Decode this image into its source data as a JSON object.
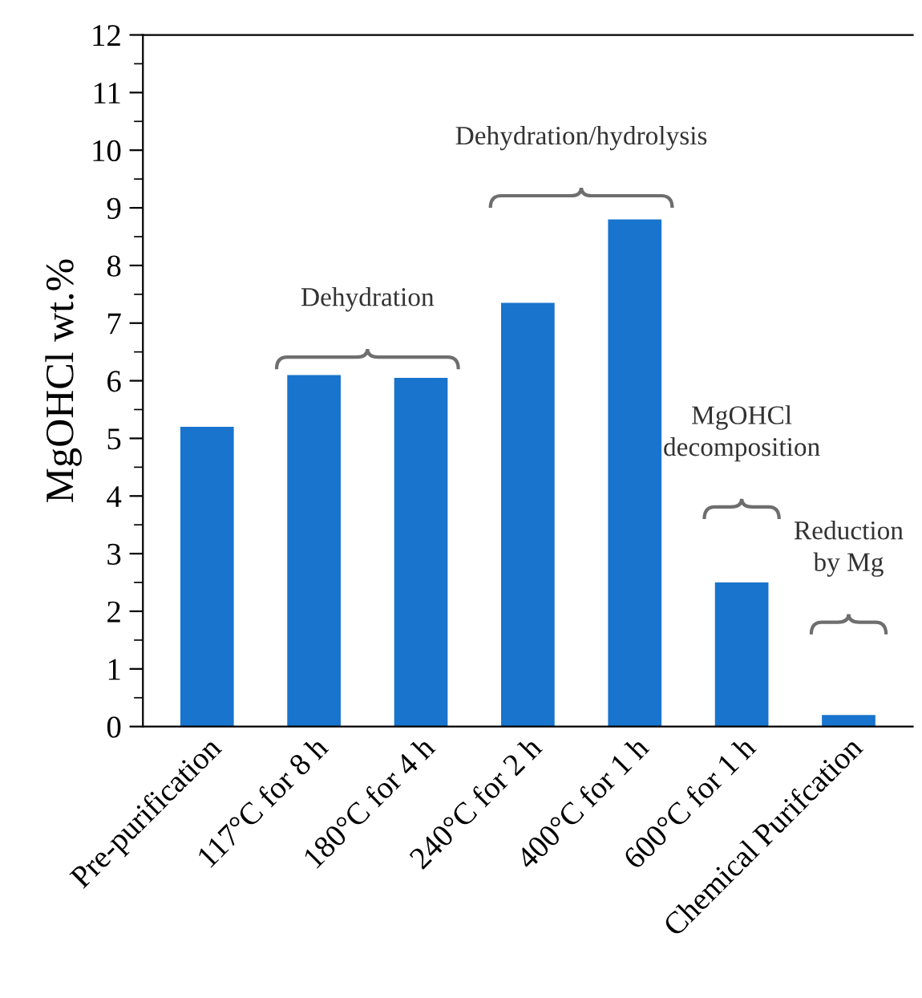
{
  "chart_data": {
    "type": "bar",
    "ylabel": "MgOHCl wt.%",
    "categories": [
      "Pre-purification",
      "117°C for 8 h",
      "180°C for 4 h",
      "240°C for 2 h",
      "400°C for 1 h",
      "600°C for 1 h",
      "Chemical Purifcation"
    ],
    "values": [
      5.2,
      6.1,
      6.05,
      7.35,
      8.8,
      2.5,
      0.2
    ],
    "color": "#1874cd",
    "ylim": [
      0,
      12
    ],
    "yticks": [
      0,
      1,
      2,
      3,
      4,
      5,
      6,
      7,
      8,
      9,
      10,
      11,
      12
    ],
    "grid": false,
    "annotations": [
      "Dehydration",
      "Dehydration/hydrolysis",
      "MgOHCl\ndecomposition",
      "Reduction\nby Mg"
    ]
  }
}
